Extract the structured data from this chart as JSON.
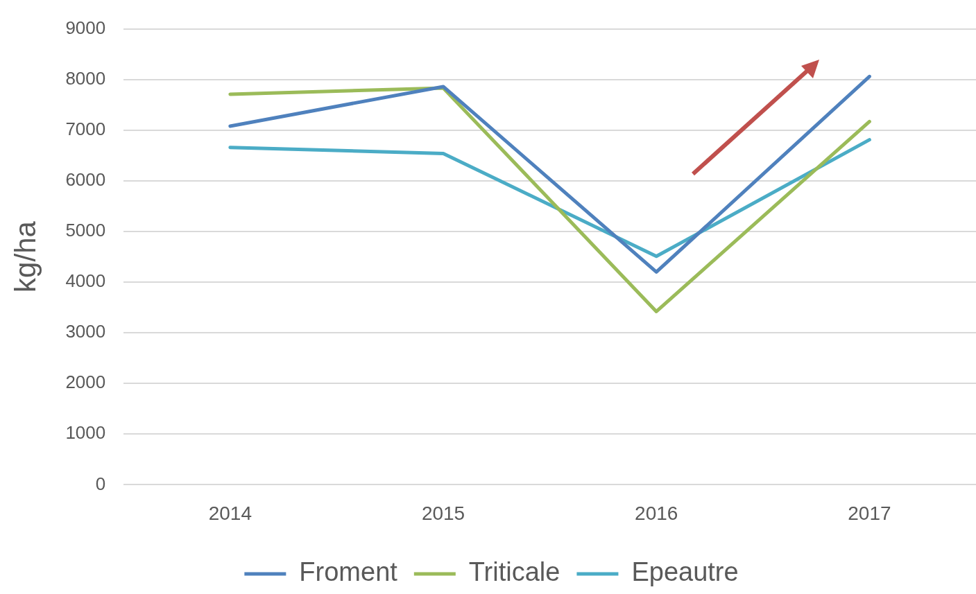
{
  "chart_data": {
    "type": "line",
    "ylabel": "kg/ha",
    "categories": [
      "2014",
      "2015",
      "2016",
      "2017"
    ],
    "series": [
      {
        "name": "Froment",
        "color": "#4f81bd",
        "values": [
          7080,
          7860,
          4200,
          8060
        ]
      },
      {
        "name": "Triticale",
        "color": "#9bbb59",
        "values": [
          7710,
          7830,
          3420,
          7170
        ]
      },
      {
        "name": "Epeautre",
        "color": "#4bacc6",
        "values": [
          6660,
          6540,
          4510,
          6810
        ]
      }
    ],
    "ylim": [
      0,
      9000
    ],
    "yticks": [
      0,
      1000,
      2000,
      3000,
      4000,
      5000,
      6000,
      7000,
      8000,
      9000
    ],
    "grid": "y",
    "legend": "bottom",
    "marker": "none",
    "line_style": "solid"
  }
}
